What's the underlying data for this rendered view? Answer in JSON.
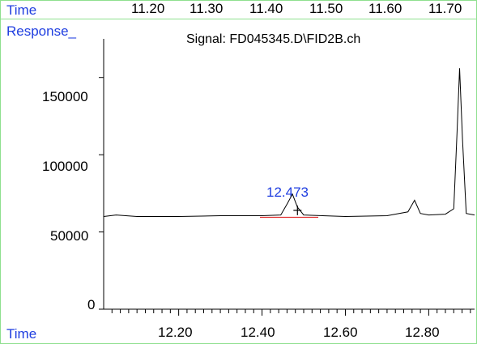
{
  "window": {
    "time_label_top": "Time",
    "response_label": "Response_",
    "time_label_bottom": "Time",
    "signal_title": "Signal: FD045345.D\\FID2B.ch"
  },
  "top_axis": {
    "ticks": [
      "11.20",
      "11.30",
      "11.40",
      "11.50",
      "11.60",
      "11.70"
    ]
  },
  "peak": {
    "label": "12.473"
  },
  "colors": {
    "frame": "#8fe08f",
    "label_blue": "#1f3ee0",
    "trace": "#000000",
    "baseline_marker": "#e03030"
  },
  "chart_data": {
    "type": "line",
    "title": "Signal: FD045345.D\\FID2B.ch",
    "xlabel": "Time",
    "ylabel": "Response_",
    "xlim": [
      12.02,
      12.91
    ],
    "ylim": [
      0,
      175000
    ],
    "x_ticks": [
      "12.20",
      "12.40",
      "12.60",
      "12.80"
    ],
    "y_ticks": [
      "0",
      "50000",
      "100000",
      "150000"
    ],
    "series": [
      {
        "x": [
          12.02,
          12.05,
          12.1,
          12.2,
          12.3,
          12.4,
          12.445,
          12.46,
          12.473,
          12.485,
          12.5,
          12.6,
          12.7,
          12.75,
          12.766,
          12.78,
          12.8,
          12.84,
          12.86,
          12.868,
          12.874,
          12.881,
          12.89,
          12.91
        ],
        "y": [
          60000,
          61000,
          60000,
          60000,
          60500,
          60500,
          61000,
          68000,
          74500,
          66000,
          61000,
          60000,
          60500,
          63000,
          70500,
          62000,
          61000,
          61500,
          65000,
          115000,
          156000,
          110000,
          62000,
          61000
        ]
      }
    ],
    "annotations": [
      {
        "text": "12.473",
        "x": 12.473,
        "y": 74500
      }
    ],
    "grid": false
  }
}
